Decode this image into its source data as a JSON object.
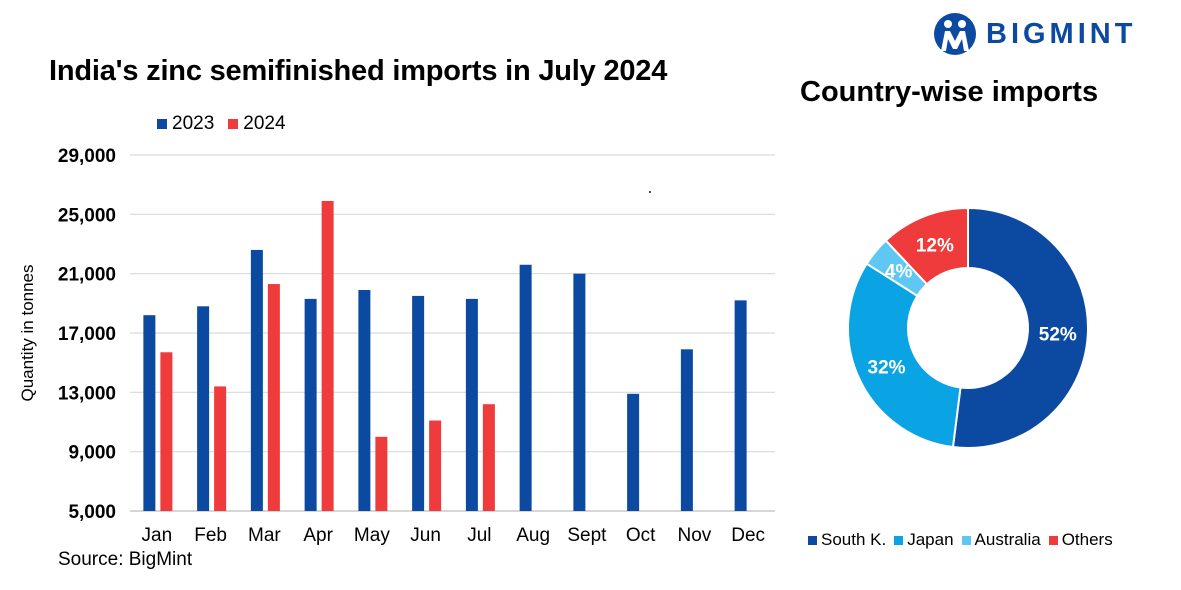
{
  "brand": {
    "name": "BIGMINT"
  },
  "source": "Source: BigMint",
  "colors": {
    "c2023": "#0b4aa0",
    "c2024": "#ef3b3b",
    "southk": "#0b4aa0",
    "japan": "#0aa3e3",
    "australia": "#5ec8f2",
    "others": "#ef3b3b"
  },
  "chart_data": [
    {
      "type": "bar",
      "title": "India's zinc semifinished imports in July 2024",
      "xlabel": "",
      "ylabel": "Quantity in tonnes",
      "ylim": [
        5000,
        29000
      ],
      "yticks": [
        "29,000",
        "25,000",
        "21,000",
        "17,000",
        "13,000",
        "9,000",
        "5,000"
      ],
      "ytick_values": [
        29000,
        25000,
        21000,
        17000,
        13000,
        9000,
        5000
      ],
      "grid": true,
      "legend": "top-left",
      "categories": [
        "Jan",
        "Feb",
        "Mar",
        "Apr",
        "May",
        "Jun",
        "Jul",
        "Aug",
        "Sept",
        "Oct",
        "Nov",
        "Dec"
      ],
      "series": [
        {
          "name": "2023",
          "values": [
            18200,
            18800,
            22600,
            19300,
            19900,
            19500,
            19300,
            21600,
            21000,
            12900,
            15900,
            19200
          ]
        },
        {
          "name": "2024",
          "values": [
            15700,
            13400,
            20300,
            25900,
            10000,
            11100,
            12200,
            null,
            null,
            null,
            null,
            null
          ]
        }
      ]
    },
    {
      "type": "pie",
      "title": "Country-wise imports",
      "legend": "bottom",
      "labels": [
        "South K.",
        "Japan",
        "Australia",
        "Others"
      ],
      "values": [
        52,
        32,
        4,
        12
      ],
      "value_labels": [
        "52%",
        "32%",
        "4%",
        "12%"
      ]
    }
  ]
}
